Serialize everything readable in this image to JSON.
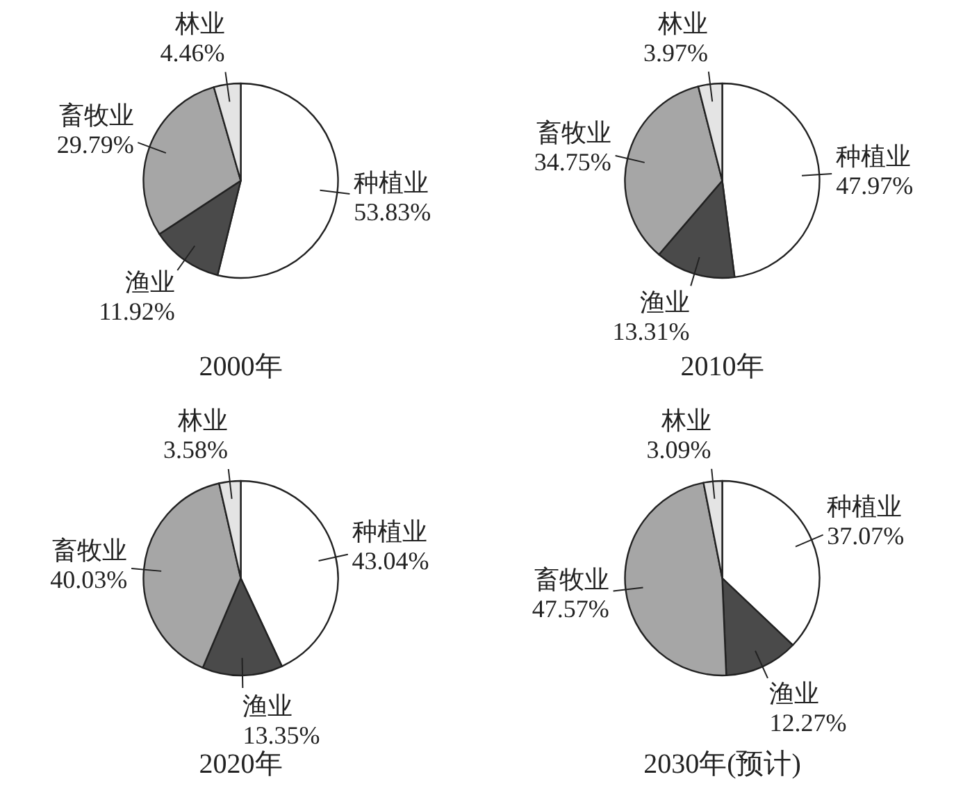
{
  "chart_data": [
    {
      "type": "pie",
      "title": "2000年",
      "categories": [
        "种植业",
        "渔业",
        "畜牧业",
        "林业"
      ],
      "values": [
        53.83,
        11.92,
        29.79,
        4.46
      ],
      "value_labels": [
        "53.83%",
        "11.92%",
        "29.79%",
        "4.46%"
      ],
      "colors": [
        "#ffffff",
        "#4a4a4a",
        "#a6a6a6",
        "#e4e4e4"
      ]
    },
    {
      "type": "pie",
      "title": "2010年",
      "categories": [
        "种植业",
        "渔业",
        "畜牧业",
        "林业"
      ],
      "values": [
        47.97,
        13.31,
        34.75,
        3.97
      ],
      "value_labels": [
        "47.97%",
        "13.31%",
        "34.75%",
        "3.97%"
      ],
      "colors": [
        "#ffffff",
        "#4a4a4a",
        "#a6a6a6",
        "#e4e4e4"
      ]
    },
    {
      "type": "pie",
      "title": "2020年",
      "categories": [
        "种植业",
        "渔业",
        "畜牧业",
        "林业"
      ],
      "values": [
        43.04,
        13.35,
        40.03,
        3.58
      ],
      "value_labels": [
        "43.04%",
        "13.35%",
        "40.03%",
        "3.58%"
      ],
      "colors": [
        "#ffffff",
        "#4a4a4a",
        "#a6a6a6",
        "#e4e4e4"
      ]
    },
    {
      "type": "pie",
      "title": "2030年(预计)",
      "categories": [
        "种植业",
        "渔业",
        "畜牧业",
        "林业"
      ],
      "values": [
        37.07,
        12.27,
        47.57,
        3.09
      ],
      "value_labels": [
        "37.07%",
        "12.27%",
        "47.57%",
        "3.09%"
      ],
      "colors": [
        "#ffffff",
        "#4a4a4a",
        "#a6a6a6",
        "#e4e4e4"
      ]
    }
  ]
}
